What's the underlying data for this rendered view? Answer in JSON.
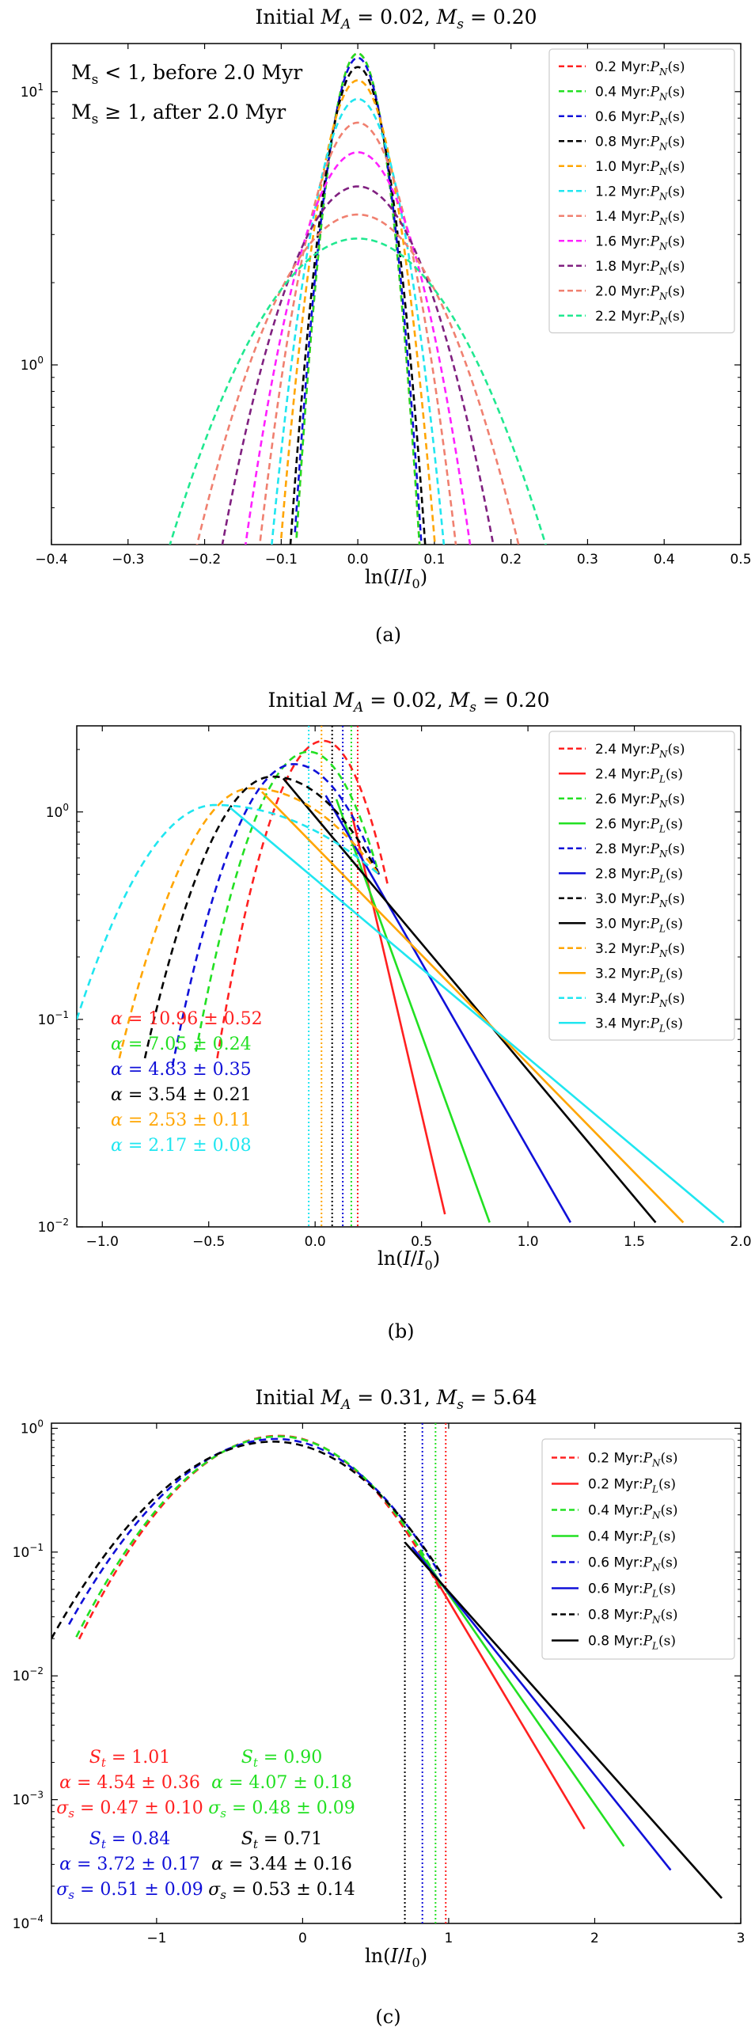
{
  "figure": {
    "title": "Three-panel PDF figure",
    "caption_labels": [
      "(a)",
      "(b)",
      "(c)"
    ]
  },
  "chart_data": [
    {
      "type": "line",
      "panel": "a",
      "title": "Initial M_A = 0.02, M_s = 0.20",
      "xlabel": "ln(I/I_0)",
      "ylabel": "",
      "xscale": "linear",
      "yscale": "log",
      "xlim": [
        -0.4,
        0.5
      ],
      "ylim": [
        0.22,
        15
      ],
      "xticks": [
        -0.4,
        -0.3,
        -0.2,
        -0.1,
        0.0,
        0.1,
        0.2,
        0.3,
        0.4,
        0.5
      ],
      "xtick_labels": [
        "−0.4",
        "−0.3",
        "−0.2",
        "−0.1",
        "0.0",
        "0.1",
        "0.2",
        "0.3",
        "0.4",
        "0.5"
      ],
      "yticks": [
        1,
        10
      ],
      "ytick_base": "10",
      "ytick_exps": [
        "0",
        "1"
      ],
      "note_lines": [
        {
          "pre": "M",
          "sub": "s",
          "post": " < 1, before 2.0 Myr"
        },
        {
          "pre": "M",
          "sub": "s",
          "post": " ≥ 1, after 2.0 Myr"
        }
      ],
      "caption": "(a)",
      "series": [
        {
          "name": "0.2 Myr:P_N(s)",
          "label": "0.2 Myr:",
          "tag": "P",
          "tagsub": "N",
          "tagarg": "(s)",
          "color": "#ff2020",
          "style": "dashed",
          "peak": 13.8,
          "sigma": 0.028,
          "xmin": -0.08,
          "xmax": 0.1
        },
        {
          "name": "0.4 Myr:P_N(s)",
          "label": "0.4 Myr:",
          "tag": "P",
          "tagsub": "N",
          "tagarg": "(s)",
          "color": "#22e022",
          "style": "dashed",
          "peak": 13.8,
          "sigma": 0.028,
          "xmin": -0.08,
          "xmax": 0.1
        },
        {
          "name": "0.6 Myr:P_N(s)",
          "label": "0.6 Myr:",
          "tag": "P",
          "tagsub": "N",
          "tagarg": "(s)",
          "color": "#1010d8",
          "style": "dashed",
          "peak": 13.3,
          "sigma": 0.029,
          "xmin": -0.082,
          "xmax": 0.1
        },
        {
          "name": "0.8 Myr:P_N(s)",
          "label": "0.8 Myr:",
          "tag": "P",
          "tagsub": "N",
          "tagarg": "(s)",
          "color": "#000000",
          "style": "dashed",
          "peak": 12.3,
          "sigma": 0.031,
          "xmin": -0.088,
          "xmax": 0.1
        },
        {
          "name": "1.0 Myr:P_N(s)",
          "label": "1.0 Myr:",
          "tag": "P",
          "tagsub": "N",
          "tagarg": "(s)",
          "color": "#ffa500",
          "style": "dashed",
          "peak": 11.0,
          "sigma": 0.036,
          "xmin": -0.1,
          "xmax": 0.115
        },
        {
          "name": "1.2 Myr:P_N(s)",
          "label": "1.2 Myr:",
          "tag": "P",
          "tagsub": "N",
          "tagarg": "(s)",
          "color": "#20e6f0",
          "style": "dashed",
          "peak": 9.4,
          "sigma": 0.041,
          "xmin": -0.115,
          "xmax": 0.13
        },
        {
          "name": "1.4 Myr:P_N(s)",
          "label": "1.4 Myr:",
          "tag": "P",
          "tagsub": "N",
          "tagarg": "(s)",
          "color": "#f08070",
          "style": "dashed",
          "peak": 7.7,
          "sigma": 0.048,
          "xmin": -0.135,
          "xmax": 0.15
        },
        {
          "name": "1.6 Myr:P_N(s)",
          "label": "1.6 Myr:",
          "tag": "P",
          "tagsub": "N",
          "tagarg": "(s)",
          "color": "#ff20ff",
          "style": "dashed",
          "peak": 6.0,
          "sigma": 0.057,
          "xmin": -0.16,
          "xmax": 0.17
        },
        {
          "name": "1.8 Myr:P_N(s)",
          "label": "1.8 Myr:",
          "tag": "P",
          "tagsub": "N",
          "tagarg": "(s)",
          "color": "#802080",
          "style": "dashed",
          "peak": 4.5,
          "sigma": 0.072,
          "xmin": -0.205,
          "xmax": 0.215
        },
        {
          "name": "2.0 Myr:P_N(s)",
          "label": "2.0 Myr:",
          "tag": "P",
          "tagsub": "N",
          "tagarg": "(s)",
          "color": "#f08070",
          "style": "dashed",
          "peak": 3.55,
          "sigma": 0.089,
          "xmin": -0.26,
          "xmax": 0.265
        },
        {
          "name": "2.2 Myr:P_N(s)",
          "label": "2.2 Myr:",
          "tag": "P",
          "tagsub": "N",
          "tagarg": "(s)",
          "color": "#20e890",
          "style": "dashed",
          "peak": 2.9,
          "sigma": 0.108,
          "xmin": -0.325,
          "xmax": 0.325
        }
      ]
    },
    {
      "type": "line",
      "panel": "b",
      "title": "Initial M_A = 0.02, M_s = 0.20",
      "xlabel": "ln(I/I_0)",
      "ylabel": "",
      "xscale": "linear",
      "yscale": "log",
      "xlim": [
        -1.12,
        2.0
      ],
      "ylim": [
        0.01,
        2.6
      ],
      "xticks": [
        -1.0,
        -0.5,
        0.0,
        0.5,
        1.0,
        1.5,
        2.0
      ],
      "xtick_labels": [
        "−1.0",
        "−0.5",
        "0.0",
        "0.5",
        "1.0",
        "1.5",
        "2.0"
      ],
      "yticks": [
        0.01,
        0.1,
        1
      ],
      "ytick_base": "10",
      "ytick_exps": [
        "−2",
        "−1",
        "0"
      ],
      "caption": "(b)",
      "series": [
        {
          "name": "2.4 Myr:P_N(s)",
          "label": "2.4 Myr:",
          "tag": "P",
          "tagsub": "N",
          "tagarg": "(s)",
          "color": "#ff2020",
          "style": "dashed",
          "kind": "pn",
          "xmin": -0.46,
          "xmax": 0.34,
          "xpeak": 0.04,
          "peak": 2.2,
          "left_end": 0.065,
          "right_end": 0.45
        },
        {
          "name": "2.4 Myr:P_L(s)",
          "label": "2.4 Myr:",
          "tag": "P",
          "tagsub": "L",
          "tagarg": "(s)",
          "color": "#ff2020",
          "style": "solid",
          "kind": "pl",
          "x0": 0.17,
          "y0": 1.0,
          "x1": 0.61,
          "y1": 0.0115
        },
        {
          "name": "2.6 Myr:P_N(s)",
          "label": "2.6 Myr:",
          "tag": "P",
          "tagsub": "N",
          "tagarg": "(s)",
          "color": "#22e022",
          "style": "dashed",
          "kind": "pn",
          "xmin": -0.56,
          "xmax": 0.3,
          "xpeak": -0.03,
          "peak": 1.95,
          "left_end": 0.07,
          "right_end": 0.5
        },
        {
          "name": "2.6 Myr:P_L(s)",
          "label": "2.6 Myr:",
          "tag": "P",
          "tagsub": "L",
          "tagarg": "(s)",
          "color": "#22e022",
          "style": "solid",
          "kind": "pl",
          "x0": 0.1,
          "y0": 1.15,
          "x1": 0.82,
          "y1": 0.0105
        },
        {
          "name": "2.8 Myr:P_N(s)",
          "label": "2.8 Myr:",
          "tag": "P",
          "tagsub": "N",
          "tagarg": "(s)",
          "color": "#1010d8",
          "style": "dashed",
          "kind": "pn",
          "xmin": -0.67,
          "xmax": 0.3,
          "xpeak": -0.1,
          "peak": 1.7,
          "left_end": 0.06,
          "right_end": 0.5
        },
        {
          "name": "2.8 Myr:P_L(s)",
          "label": "2.8 Myr:",
          "tag": "P",
          "tagsub": "L",
          "tagarg": "(s)",
          "color": "#1010d8",
          "style": "solid",
          "kind": "pl",
          "x0": 0.05,
          "y0": 1.2,
          "x1": 1.2,
          "y1": 0.0105
        },
        {
          "name": "3.0 Myr:P_N(s)",
          "label": "3.0 Myr:",
          "tag": "P",
          "tagsub": "N",
          "tagarg": "(s)",
          "color": "#000000",
          "style": "dashed",
          "kind": "pn",
          "xmin": -0.8,
          "xmax": 0.3,
          "xpeak": -0.2,
          "peak": 1.48,
          "left_end": 0.065,
          "right_end": 0.5
        },
        {
          "name": "3.0 Myr:P_L(s)",
          "label": "3.0 Myr:",
          "tag": "P",
          "tagsub": "L",
          "tagarg": "(s)",
          "color": "#000000",
          "style": "solid",
          "kind": "pl",
          "x0": -0.15,
          "y0": 1.45,
          "x1": 1.6,
          "y1": 0.0105
        },
        {
          "name": "3.2 Myr:P_N(s)",
          "label": "3.2 Myr:",
          "tag": "P",
          "tagsub": "N",
          "tagarg": "(s)",
          "color": "#ffa500",
          "style": "dashed",
          "kind": "pn",
          "xmin": -0.92,
          "xmax": 0.3,
          "xpeak": -0.3,
          "peak": 1.3,
          "left_end": 0.065,
          "right_end": 0.5
        },
        {
          "name": "3.2 Myr:P_L(s)",
          "label": "3.2 Myr:",
          "tag": "P",
          "tagsub": "L",
          "tagarg": "(s)",
          "color": "#ffa500",
          "style": "solid",
          "kind": "pl",
          "x0": -0.25,
          "y0": 1.25,
          "x1": 1.73,
          "y1": 0.0105
        },
        {
          "name": "3.4 Myr:P_N(s)",
          "label": "3.4 Myr:",
          "tag": "P",
          "tagsub": "N",
          "tagarg": "(s)",
          "color": "#20e6f0",
          "style": "dashed",
          "kind": "pn",
          "xmin": -1.12,
          "xmax": 0.3,
          "xpeak": -0.47,
          "peak": 1.08,
          "left_end": 0.1,
          "right_end": 0.5
        },
        {
          "name": "3.4 Myr:P_L(s)",
          "label": "3.4 Myr:",
          "tag": "P",
          "tagsub": "L",
          "tagarg": "(s)",
          "color": "#20e6f0",
          "style": "solid",
          "kind": "pl",
          "x0": -0.4,
          "y0": 1.05,
          "x1": 1.92,
          "y1": 0.0105
        }
      ],
      "vlines": [
        {
          "x": -0.03,
          "color": "#20e6f0"
        },
        {
          "x": 0.03,
          "color": "#ffa500"
        },
        {
          "x": 0.08,
          "color": "#000000"
        },
        {
          "x": 0.13,
          "color": "#1010d8"
        },
        {
          "x": 0.17,
          "color": "#22e022"
        },
        {
          "x": 0.2,
          "color": "#ff2020"
        }
      ],
      "annotations": [
        {
          "text": "α = 10.96 ± 0.52",
          "color": "#ff2020"
        },
        {
          "text": "α = 7.05 ± 0.24",
          "color": "#22e022"
        },
        {
          "text": "α = 4.83 ± 0.35",
          "color": "#1010d8"
        },
        {
          "text": "α = 3.54 ± 0.21",
          "color": "#000000"
        },
        {
          "text": "α = 2.53 ± 0.11",
          "color": "#ffa500"
        },
        {
          "text": "α = 2.17 ± 0.08",
          "color": "#20e6f0"
        }
      ]
    },
    {
      "type": "line",
      "panel": "c",
      "title": "Initial M_A = 0.31, M_s = 5.64",
      "xlabel": "ln(I/I_0)",
      "ylabel": "",
      "xscale": "linear",
      "yscale": "log",
      "xlim": [
        -1.72,
        3.0
      ],
      "ylim": [
        0.0001,
        1.1
      ],
      "xticks": [
        -1,
        0,
        1,
        2,
        3
      ],
      "xtick_labels": [
        "−1",
        "0",
        "1",
        "2",
        "3"
      ],
      "yticks": [
        0.0001,
        0.001,
        0.01,
        0.1,
        1
      ],
      "ytick_base": "10",
      "ytick_exps": [
        "−4",
        "−3",
        "−2",
        "−1",
        "0"
      ],
      "caption": "(c)",
      "series": [
        {
          "name": "0.2 Myr:P_N(s)",
          "label": "0.2 Myr:",
          "tag": "P",
          "tagsub": "N",
          "tagarg": "(s)",
          "color": "#ff2020",
          "style": "dashed",
          "kind": "pn",
          "xmin": -1.53,
          "xmax": 0.95,
          "xpeak": -0.16,
          "peak": 0.87,
          "sig": 0.47,
          "right_end": 1.0
        },
        {
          "name": "0.2 Myr:P_L(s)",
          "label": "0.2 Myr:",
          "tag": "P",
          "tagsub": "L",
          "tagarg": "(s)",
          "color": "#ff2020",
          "style": "solid",
          "kind": "pl",
          "x0": 0.8,
          "y0": 0.1,
          "x1": 1.93,
          "y1": 0.00058
        },
        {
          "name": "0.4 Myr:P_N(s)",
          "label": "0.4 Myr:",
          "tag": "P",
          "tagsub": "N",
          "tagarg": "(s)",
          "color": "#22e022",
          "style": "dashed",
          "kind": "pn",
          "xmin": -1.55,
          "xmax": 0.95,
          "xpeak": -0.16,
          "peak": 0.86,
          "sig": 0.48,
          "right_end": 1.0
        },
        {
          "name": "0.4 Myr:P_L(s)",
          "label": "0.4 Myr:",
          "tag": "P",
          "tagsub": "L",
          "tagarg": "(s)",
          "color": "#22e022",
          "style": "solid",
          "kind": "pl",
          "x0": 0.8,
          "y0": 0.1,
          "x1": 2.2,
          "y1": 0.00042
        },
        {
          "name": "0.6 Myr:P_N(s)",
          "label": "0.6 Myr:",
          "tag": "P",
          "tagsub": "N",
          "tagarg": "(s)",
          "color": "#1010d8",
          "style": "dashed",
          "kind": "pn",
          "xmin": -1.6,
          "xmax": 0.95,
          "xpeak": -0.18,
          "peak": 0.82,
          "sig": 0.51,
          "right_end": 1.0
        },
        {
          "name": "0.6 Myr:P_L(s)",
          "label": "0.6 Myr:",
          "tag": "P",
          "tagsub": "L",
          "tagarg": "(s)",
          "color": "#1010d8",
          "style": "solid",
          "kind": "pl",
          "x0": 0.75,
          "y0": 0.11,
          "x1": 2.52,
          "y1": 0.00027
        },
        {
          "name": "0.8 Myr:P_N(s)",
          "label": "0.8 Myr:",
          "tag": "P",
          "tagsub": "N",
          "tagarg": "(s)",
          "color": "#000000",
          "style": "dashed",
          "kind": "pn",
          "xmin": -1.72,
          "xmax": 0.95,
          "xpeak": -0.2,
          "peak": 0.78,
          "sig": 0.53,
          "right_end": 1.0
        },
        {
          "name": "0.8 Myr:P_L(s)",
          "label": "0.8 Myr:",
          "tag": "P",
          "tagsub": "L",
          "tagarg": "(s)",
          "color": "#000000",
          "style": "solid",
          "kind": "pl",
          "x0": 0.7,
          "y0": 0.12,
          "x1": 2.87,
          "y1": 0.00016
        }
      ],
      "vlines": [
        {
          "x": 0.7,
          "color": "#000000"
        },
        {
          "x": 0.82,
          "color": "#1010d8"
        },
        {
          "x": 0.91,
          "color": "#22e022"
        },
        {
          "x": 0.98,
          "color": "#ff2020"
        }
      ],
      "annotations": [
        {
          "color": "#ff2020",
          "lines": [
            "S_t = 1.01",
            "α = 4.54 ± 0.36",
            "σ_s = 0.47 ± 0.10"
          ],
          "st": "1.01",
          "alpha": "4.54 ± 0.36",
          "sigma": "0.47 ± 0.10"
        },
        {
          "color": "#22e022",
          "lines": [
            "S_t = 0.90",
            "α = 4.07 ± 0.18",
            "σ_s = 0.48 ± 0.09"
          ],
          "st": "0.90",
          "alpha": "4.07 ± 0.18",
          "sigma": "0.48 ± 0.09"
        },
        {
          "color": "#1010d8",
          "lines": [
            "S_t = 0.84",
            "α = 3.72 ± 0.17",
            "σ_s = 0.51 ± 0.09"
          ],
          "st": "0.84",
          "alpha": "3.72 ± 0.17",
          "sigma": "0.51 ± 0.09"
        },
        {
          "color": "#000000",
          "lines": [
            "S_t = 0.71",
            "α = 3.44 ± 0.16",
            "σ_s = 0.53 ± 0.14"
          ],
          "st": "0.71",
          "alpha": "3.44 ± 0.16",
          "sigma": "0.53 ± 0.14"
        }
      ]
    }
  ]
}
